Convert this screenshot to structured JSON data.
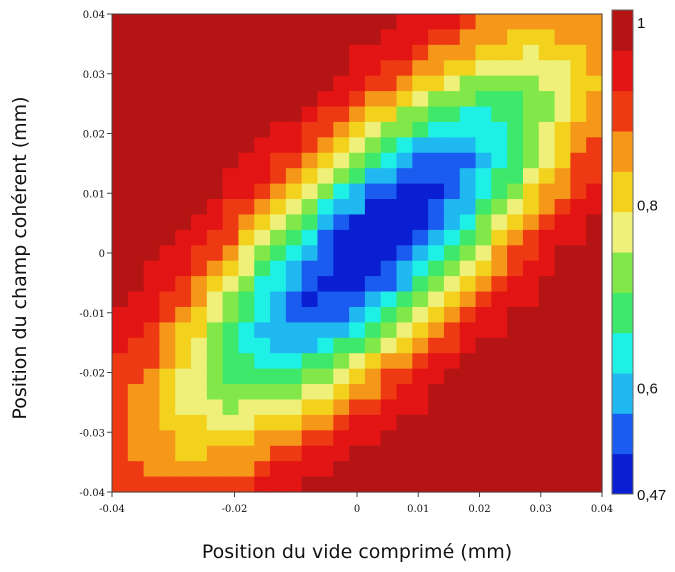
{
  "chart_data": {
    "type": "heatmap",
    "xlabel": "Position du vide comprimé (mm)",
    "ylabel": "Position du champ cohérent (mm)",
    "xlim": [
      -0.04,
      0.04
    ],
    "ylim": [
      -0.04,
      0.04
    ],
    "x_ticks": [
      "-0.04",
      "-0.02",
      "0",
      "0.01",
      "0.02",
      "0.03",
      "0.04"
    ],
    "x_tick_values": [
      -0.04,
      -0.02,
      0,
      0.01,
      0.02,
      0.03,
      0.04
    ],
    "y_ticks": [
      "0.04",
      "0.03",
      "0.02",
      "0.01",
      "0",
      "-0.01",
      "-0.02",
      "-0.03",
      "-0.04"
    ],
    "y_tick_values": [
      0.04,
      0.03,
      0.02,
      0.01,
      0,
      -0.01,
      -0.02,
      -0.03,
      -0.04
    ],
    "grid_size": [
      31,
      31
    ],
    "colorbar": {
      "range": [
        0.47,
        1
      ],
      "labels": [
        {
          "text": "1",
          "value": 1
        },
        {
          "text": "0,8",
          "value": 0.8
        },
        {
          "text": "0,6",
          "value": 0.6
        },
        {
          "text": "0,47",
          "value": 0.47
        }
      ]
    },
    "model": {
      "description_free": true,
      "min_value": 0.47,
      "max_value": 1,
      "center_x": 0.003,
      "center_y": 0.002,
      "valley_direction": [
        0.707,
        0.707
      ],
      "width_along": 0.032,
      "width_across": 0.011
    }
  },
  "colormap": [
    "#0a1ed2",
    "#1a5cf0",
    "#1fb8f0",
    "#1ff0e6",
    "#3ee86a",
    "#82e84a",
    "#eef07a",
    "#f3d21e",
    "#f5981a",
    "#ee3a12",
    "#e21414",
    "#b41414"
  ]
}
